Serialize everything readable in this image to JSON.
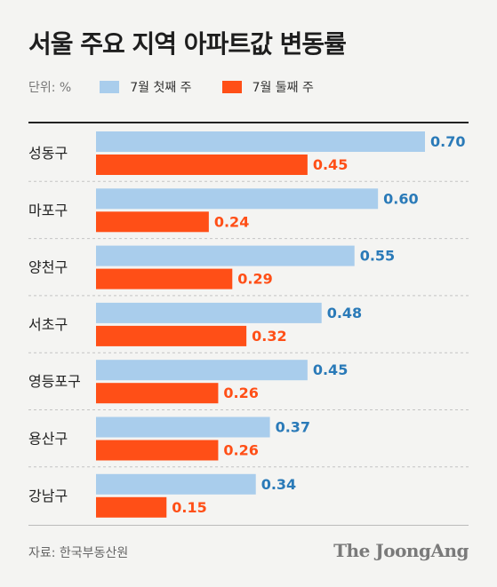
{
  "title": "서울 주요 지역 아파트값 변동률",
  "unit_label": "단위: %",
  "source": "자료: 한국부동산원",
  "logo_text": "The JoongAng",
  "colors": {
    "week1": "#a9cdec",
    "week2": "#ff4f17",
    "week1_label": "#2a7ab8",
    "week2_label": "#ff4f17"
  },
  "chart_data": {
    "type": "bar",
    "orientation": "horizontal",
    "categories": [
      "성동구",
      "마포구",
      "양천구",
      "서초구",
      "영등포구",
      "용산구",
      "강남구"
    ],
    "series": [
      {
        "name": "7월 첫째 주",
        "values": [
          0.7,
          0.6,
          0.55,
          0.48,
          0.45,
          0.37,
          0.34
        ],
        "labels": [
          "0.70",
          "0.60",
          "0.55",
          "0.48",
          "0.45",
          "0.37",
          "0.34"
        ]
      },
      {
        "name": "7월 둘째 주",
        "values": [
          0.45,
          0.24,
          0.29,
          0.32,
          0.26,
          0.26,
          0.15
        ],
        "labels": [
          "0.45",
          "0.24",
          "0.29",
          "0.32",
          "0.26",
          "0.26",
          "0.15"
        ]
      }
    ],
    "title": "서울 주요 지역 아파트값 변동률",
    "xlim": [
      0,
      0.7
    ],
    "grid": false,
    "legend": "top-left"
  }
}
